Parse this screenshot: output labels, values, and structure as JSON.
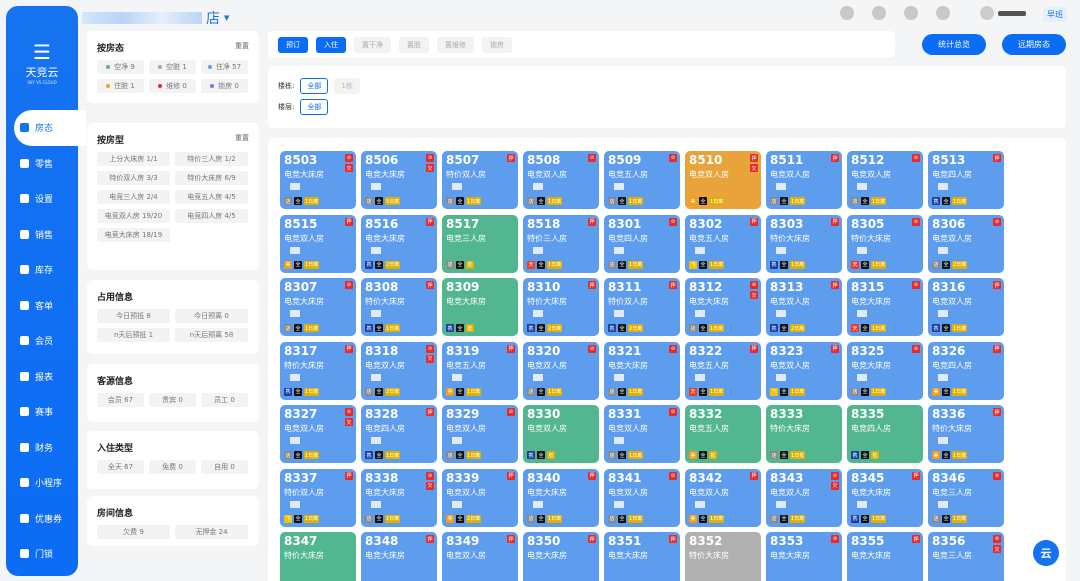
{
  "brand": {
    "name": "天竞云",
    "sub": "SKY VS CLOUD",
    "mark": "云"
  },
  "store": {
    "name": "店"
  },
  "header": {
    "shift": "早班",
    "icons": [
      "notebook-icon",
      "help-icon",
      "document-icon",
      "mini-program-icon"
    ]
  },
  "sidebar": {
    "items": [
      {
        "label": "房态",
        "icon": "home-icon",
        "active": true
      },
      {
        "label": "零售",
        "icon": "bag-icon"
      },
      {
        "label": "设置",
        "icon": "gear-icon"
      },
      {
        "label": "销售",
        "icon": "bag-icon"
      },
      {
        "label": "库存",
        "icon": "warehouse-icon"
      },
      {
        "label": "客单",
        "icon": "receipt-icon"
      },
      {
        "label": "会员",
        "icon": "diamond-icon"
      },
      {
        "label": "报表",
        "icon": "chart-icon"
      },
      {
        "label": "赛事",
        "icon": "trophy-icon"
      },
      {
        "label": "财务",
        "icon": "wallet-icon"
      },
      {
        "label": "小程序",
        "icon": "mini-program-icon"
      },
      {
        "label": "优惠券",
        "icon": "coupon-icon"
      },
      {
        "label": "门锁",
        "icon": "lock-icon"
      }
    ]
  },
  "panels": {
    "status": {
      "title": "按房态",
      "reset": "重置",
      "chips": [
        {
          "label": "空净 9",
          "color": "#52b690"
        },
        {
          "label": "空脏 1",
          "color": "#aaaaaa"
        },
        {
          "label": "住净 57",
          "color": "#5e9ded"
        },
        {
          "label": "住脏 1",
          "color": "#e8a33a"
        },
        {
          "label": "维修 0",
          "color": "#e52b2b"
        },
        {
          "label": "锁房 0",
          "color": "#8a6cf0"
        }
      ]
    },
    "type": {
      "title": "按房型",
      "reset": "重置",
      "chips": [
        "上分大床房 1/1",
        "特价三人房 1/2",
        "特价双人房 3/3",
        "特价大床房 6/9",
        "电竞三人房 2/4",
        "电竞五人房 4/5",
        "电竞双人房 19/20",
        "电竞四人房 4/5",
        "电竞大床房 18/19"
      ]
    },
    "occupancy": {
      "title": "占用信息",
      "chips": [
        "今日预抵 8",
        "今日预离 0",
        "n天后预抵 1",
        "n天后预离 58"
      ]
    },
    "source": {
      "title": "客源信息",
      "chips": [
        "会员 67",
        "贵宾 0",
        "员工 0"
      ]
    },
    "checkin": {
      "title": "入住类型",
      "chips": [
        "全天 67",
        "免费 0",
        "自用 0"
      ]
    },
    "roominfo": {
      "title": "房间信息",
      "chips": [
        "欠费 9",
        "无押金 24"
      ]
    }
  },
  "toolbar": {
    "buttons": [
      {
        "label": "预订",
        "primary": true
      },
      {
        "label": "入住",
        "primary": true
      },
      {
        "label": "置干净"
      },
      {
        "label": "置脏"
      },
      {
        "label": "置维修"
      },
      {
        "label": "锁房"
      }
    ],
    "stats_label": "统计总览",
    "forecast_label": "远期房态"
  },
  "filter": {
    "building_label": "楼栋:",
    "building_options": [
      "全部",
      "1栋"
    ],
    "floor_label": "楼层:",
    "floor_options": [
      "全部"
    ]
  },
  "tag_colors": {
    "店": "#8a8a8a",
    "全": "#111111",
    "美": "#f39c12",
    "携": "#1a3fa0",
    "天": "#f03b20",
    "飞": "#f5c400",
    "stay": "#e0b000"
  },
  "rooms": [
    {
      "n": "8503",
      "t": "电竞大床房",
      "b": [
        "no-smoking",
        "欠"
      ],
      "g": [
        "店",
        "全",
        "1日离"
      ]
    },
    {
      "n": "8506",
      "t": "电竞大床房",
      "b": [
        "no-smoking",
        "欠"
      ],
      "g": [
        "店",
        "全",
        "5日离"
      ]
    },
    {
      "n": "8507",
      "t": "特价双人房",
      "b": [
        "押"
      ],
      "g": [
        "店",
        "全",
        "1日离"
      ]
    },
    {
      "n": "8508",
      "t": "电竞双人房",
      "b": [
        "no-smoking"
      ],
      "g": [
        "店",
        "全",
        "1日离"
      ]
    },
    {
      "n": "8509",
      "t": "电竞五人房",
      "b": [
        "no-smoking"
      ],
      "g": [
        "店",
        "全",
        "1日离"
      ]
    },
    {
      "n": "8510",
      "t": "电竞双人房",
      "s": "orange",
      "b": [
        "押",
        "欠"
      ],
      "g": [
        "美",
        "全",
        "1日离"
      ]
    },
    {
      "n": "8511",
      "t": "电竞双人房",
      "b": [
        "押"
      ],
      "g": [
        "店",
        "全",
        "1日离"
      ]
    },
    {
      "n": "8512",
      "t": "电竞双人房",
      "b": [
        "no-smoking"
      ],
      "g": [
        "店",
        "全",
        "1日离"
      ]
    },
    {
      "n": "8513",
      "t": "电竞四人房",
      "b": [
        "押"
      ],
      "g": [
        "携",
        "全",
        "1日离"
      ]
    },
    {
      "n": "8515",
      "t": "电竞双人房",
      "b": [
        "押"
      ],
      "g": [
        "美",
        "全",
        "1日离"
      ]
    },
    {
      "n": "8516",
      "t": "电竞大床房",
      "b": [
        "押"
      ],
      "g": [
        "携",
        "全",
        "2日离"
      ]
    },
    {
      "n": "8517",
      "t": "电竞三人房",
      "s": "green",
      "b": [],
      "g": [
        "店",
        "全",
        "抵"
      ]
    },
    {
      "n": "8518",
      "t": "特价三人房",
      "b": [
        "押"
      ],
      "g": [
        "天",
        "全",
        "1日离"
      ]
    },
    {
      "n": "8301",
      "t": "电竞四人房",
      "b": [
        "no-smoking"
      ],
      "g": [
        "店",
        "全",
        "1日离"
      ]
    },
    {
      "n": "8302",
      "t": "电竞五人房",
      "b": [
        "押"
      ],
      "g": [
        "飞",
        "全",
        "1日离"
      ]
    },
    {
      "n": "8303",
      "t": "特价大床房",
      "b": [
        "押"
      ],
      "g": [
        "携",
        "全",
        "1日离"
      ]
    },
    {
      "n": "8305",
      "t": "特价大床房",
      "b": [
        "no-smoking"
      ],
      "g": [
        "天",
        "全",
        "1日离"
      ]
    },
    {
      "n": "8306",
      "t": "电竞双人房",
      "b": [
        "no-smoking"
      ],
      "g": [
        "店",
        "全",
        "2日离"
      ]
    },
    {
      "n": "8307",
      "t": "电竞大床房",
      "b": [
        "no-smoking"
      ],
      "g": [
        "店",
        "全",
        "1日离"
      ]
    },
    {
      "n": "8308",
      "t": "特价大床房",
      "b": [
        "押"
      ],
      "g": [
        "携",
        "全",
        "1日离"
      ]
    },
    {
      "n": "8309",
      "t": "电竞大床房",
      "s": "green",
      "b": [],
      "g": [
        "携",
        "全",
        "抵"
      ]
    },
    {
      "n": "8310",
      "t": "特价大床房",
      "b": [
        "押"
      ],
      "g": [
        "携",
        "全",
        "2日离"
      ]
    },
    {
      "n": "8311",
      "t": "特价双人房",
      "b": [
        "押"
      ],
      "g": [
        "携",
        "全",
        "2日离"
      ]
    },
    {
      "n": "8312",
      "t": "电竞大床房",
      "b": [
        "no-smoking",
        "欠"
      ],
      "g": [
        "店",
        "全",
        "1日离"
      ]
    },
    {
      "n": "8313",
      "t": "电竞双人房",
      "b": [
        "押"
      ],
      "g": [
        "携",
        "全",
        "2日离"
      ]
    },
    {
      "n": "8315",
      "t": "电竞大床房",
      "b": [
        "no-smoking"
      ],
      "g": [
        "天",
        "全",
        "1日离"
      ]
    },
    {
      "n": "8316",
      "t": "电竞双人房",
      "b": [
        "押"
      ],
      "g": [
        "携",
        "全",
        "1日离"
      ]
    },
    {
      "n": "8317",
      "t": "特价大床房",
      "b": [
        "押"
      ],
      "g": [
        "携",
        "全",
        "1日离"
      ]
    },
    {
      "n": "8318",
      "t": "电竞双人房",
      "b": [
        "no-smoking",
        "欠"
      ],
      "g": [
        "店",
        "全",
        "2日离"
      ]
    },
    {
      "n": "8319",
      "t": "电竞五人房",
      "b": [
        "押"
      ],
      "g": [
        "美",
        "全",
        "1日离"
      ]
    },
    {
      "n": "8320",
      "t": "电竞双人房",
      "b": [
        "no-smoking"
      ],
      "g": [
        "店",
        "全",
        "1日离"
      ]
    },
    {
      "n": "8321",
      "t": "电竞大床房",
      "b": [
        "no-smoking"
      ],
      "g": [
        "店",
        "全",
        "1日离"
      ]
    },
    {
      "n": "8322",
      "t": "电竞五人房",
      "b": [
        "押"
      ],
      "g": [
        "天",
        "全",
        "1日离"
      ]
    },
    {
      "n": "8323",
      "t": "电竞双人房",
      "b": [
        "押"
      ],
      "g": [
        "飞",
        "全",
        "1日离"
      ]
    },
    {
      "n": "8325",
      "t": "电竞大床房",
      "b": [
        "no-smoking"
      ],
      "g": [
        "店",
        "全",
        "1日离"
      ]
    },
    {
      "n": "8326",
      "t": "电竞四人房",
      "b": [
        "押"
      ],
      "g": [
        "美",
        "全",
        "1日离"
      ]
    },
    {
      "n": "8327",
      "t": "电竞双人房",
      "b": [
        "no-smoking",
        "欠"
      ],
      "g": [
        "店",
        "全",
        "1日离"
      ]
    },
    {
      "n": "8328",
      "t": "电竞四人房",
      "b": [
        "押"
      ],
      "g": [
        "携",
        "全",
        "1日离"
      ]
    },
    {
      "n": "8329",
      "t": "电竞双人房",
      "b": [
        "no-smoking"
      ],
      "g": [
        "店",
        "全",
        "1日离"
      ]
    },
    {
      "n": "8330",
      "t": "电竞双人房",
      "s": "green",
      "b": [],
      "g": [
        "携",
        "全",
        "抵"
      ]
    },
    {
      "n": "8331",
      "t": "电竞双人房",
      "b": [
        "no-smoking"
      ],
      "g": [
        "店",
        "全",
        "1日离"
      ]
    },
    {
      "n": "8332",
      "t": "电竞五人房",
      "s": "green",
      "b": [],
      "g": [
        "美",
        "全",
        "抵"
      ]
    },
    {
      "n": "8333",
      "t": "特价大床房",
      "s": "green",
      "b": [],
      "g": [
        "店",
        "全",
        "1日抵"
      ]
    },
    {
      "n": "8335",
      "t": "电竞四人房",
      "s": "green",
      "b": [],
      "g": [
        "携",
        "全",
        "抵"
      ]
    },
    {
      "n": "8336",
      "t": "特价大床房",
      "b": [
        "押"
      ],
      "g": [
        "美",
        "全",
        "1日离"
      ]
    },
    {
      "n": "8337",
      "t": "特价双人房",
      "b": [
        "押"
      ],
      "g": [
        "飞",
        "全",
        "1日离"
      ]
    },
    {
      "n": "8338",
      "t": "电竞大床房",
      "b": [
        "no-smoking",
        "欠"
      ],
      "g": [
        "店",
        "全",
        "1日离"
      ]
    },
    {
      "n": "8339",
      "t": "电竞双人房",
      "b": [
        "押"
      ],
      "g": [
        "美",
        "全",
        "2日离"
      ]
    },
    {
      "n": "8340",
      "t": "电竞大床房",
      "b": [
        "押"
      ],
      "g": [
        "店",
        "全",
        "1日离"
      ]
    },
    {
      "n": "8341",
      "t": "电竞双人房",
      "b": [
        "no-smoking"
      ],
      "g": [
        "店",
        "全",
        "1日离"
      ]
    },
    {
      "n": "8342",
      "t": "电竞双人房",
      "b": [
        "押"
      ],
      "g": [
        "美",
        "全",
        "1日离"
      ]
    },
    {
      "n": "8343",
      "t": "电竞双人房",
      "b": [
        "no-smoking",
        "欠"
      ],
      "g": [
        "店",
        "全",
        "1日离"
      ]
    },
    {
      "n": "8345",
      "t": "电竞大床房",
      "b": [
        "押"
      ],
      "g": [
        "携",
        "全",
        "1日离"
      ]
    },
    {
      "n": "8346",
      "t": "电竞三人房",
      "b": [
        "no-smoking"
      ],
      "g": [
        "店",
        "全",
        "1日离"
      ]
    },
    {
      "n": "8347",
      "t": "特价大床房",
      "s": "green",
      "b": [],
      "g": []
    },
    {
      "n": "8348",
      "t": "电竞大床房",
      "b": [
        "押"
      ],
      "g": []
    },
    {
      "n": "8349",
      "t": "电竞双人房",
      "b": [
        "押"
      ],
      "g": []
    },
    {
      "n": "8350",
      "t": "电竞大床房",
      "b": [
        "押"
      ],
      "g": []
    },
    {
      "n": "8351",
      "t": "电竞大床房",
      "b": [
        "押"
      ],
      "g": []
    },
    {
      "n": "8352",
      "t": "特价大床房",
      "s": "gray",
      "b": [],
      "g": []
    },
    {
      "n": "8353",
      "t": "电竞大床房",
      "b": [
        "no-smoking"
      ],
      "g": []
    },
    {
      "n": "8355",
      "t": "电竞大床房",
      "b": [
        "押"
      ],
      "g": []
    },
    {
      "n": "8356",
      "t": "电竞三人房",
      "b": [
        "no-smoking",
        "欠"
      ],
      "g": []
    }
  ]
}
